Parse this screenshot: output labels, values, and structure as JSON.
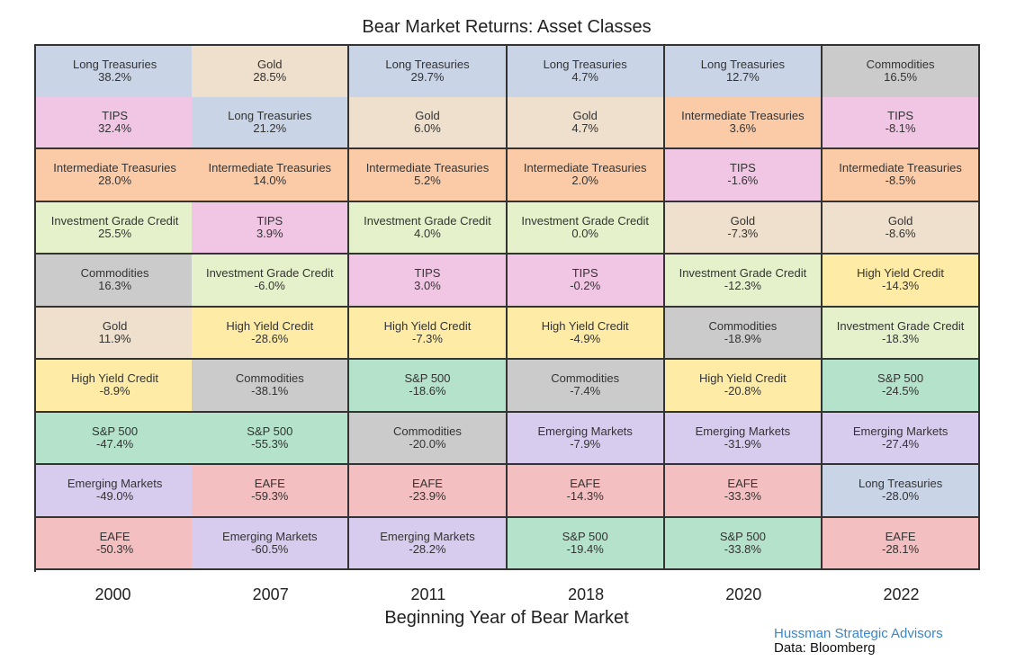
{
  "chart_data": {
    "type": "table",
    "title": "Bear Market Returns: Asset Classes",
    "xlabel": "Beginning Year of Bear Market",
    "categories": [
      "2000",
      "2007",
      "2011",
      "2018",
      "2020",
      "2022"
    ],
    "colors": {
      "Long Treasuries": "#c9d4e6",
      "Gold": "#eee0cc",
      "TIPS": "#f1c6e4",
      "Intermediate Treasuries": "#fbcaa6",
      "Investment Grade Credit": "#e5f1cb",
      "Commodities": "#cbcbcb",
      "High Yield Credit": "#fdeba6",
      "S&P 500": "#b4e2ca",
      "Emerging Markets": "#d7cced",
      "EAFE": "#f3bfc0"
    },
    "columns": [
      {
        "year": "2000",
        "cells": [
          {
            "asset": "Long Treasuries",
            "value": "38.2%"
          },
          {
            "asset": "TIPS",
            "value": "32.4%"
          },
          {
            "asset": "Intermediate Treasuries",
            "value": "28.0%"
          },
          {
            "asset": "Investment Grade Credit",
            "value": "25.5%"
          },
          {
            "asset": "Commodities",
            "value": "16.3%"
          },
          {
            "asset": "Gold",
            "value": "11.9%"
          },
          {
            "asset": "High Yield Credit",
            "value": "-8.9%"
          },
          {
            "asset": "S&P 500",
            "value": "-47.4%"
          },
          {
            "asset": "Emerging Markets",
            "value": "-49.0%"
          },
          {
            "asset": "EAFE",
            "value": "-50.3%"
          }
        ]
      },
      {
        "year": "2007",
        "cells": [
          {
            "asset": "Gold",
            "value": "28.5%"
          },
          {
            "asset": "Long Treasuries",
            "value": "21.2%"
          },
          {
            "asset": "Intermediate Treasuries",
            "value": "14.0%"
          },
          {
            "asset": "TIPS",
            "value": "3.9%"
          },
          {
            "asset": "Investment Grade Credit",
            "value": "-6.0%"
          },
          {
            "asset": "High Yield Credit",
            "value": "-28.6%"
          },
          {
            "asset": "Commodities",
            "value": "-38.1%"
          },
          {
            "asset": "S&P 500",
            "value": "-55.3%"
          },
          {
            "asset": "EAFE",
            "value": "-59.3%"
          },
          {
            "asset": "Emerging Markets",
            "value": "-60.5%"
          }
        ]
      },
      {
        "year": "2011",
        "cells": [
          {
            "asset": "Long Treasuries",
            "value": "29.7%"
          },
          {
            "asset": "Gold",
            "value": "6.0%"
          },
          {
            "asset": "Intermediate Treasuries",
            "value": "5.2%"
          },
          {
            "asset": "Investment Grade Credit",
            "value": "4.0%"
          },
          {
            "asset": "TIPS",
            "value": "3.0%"
          },
          {
            "asset": "High Yield Credit",
            "value": "-7.3%"
          },
          {
            "asset": "S&P 500",
            "value": "-18.6%"
          },
          {
            "asset": "Commodities",
            "value": "-20.0%"
          },
          {
            "asset": "EAFE",
            "value": "-23.9%"
          },
          {
            "asset": "Emerging Markets",
            "value": "-28.2%"
          }
        ]
      },
      {
        "year": "2018",
        "cells": [
          {
            "asset": "Long Treasuries",
            "value": "4.7%"
          },
          {
            "asset": "Gold",
            "value": "4.7%"
          },
          {
            "asset": "Intermediate Treasuries",
            "value": "2.0%"
          },
          {
            "asset": "Investment Grade Credit",
            "value": "0.0%"
          },
          {
            "asset": "TIPS",
            "value": "-0.2%"
          },
          {
            "asset": "High Yield Credit",
            "value": "-4.9%"
          },
          {
            "asset": "Commodities",
            "value": "-7.4%"
          },
          {
            "asset": "Emerging Markets",
            "value": "-7.9%"
          },
          {
            "asset": "EAFE",
            "value": "-14.3%"
          },
          {
            "asset": "S&P 500",
            "value": "-19.4%"
          }
        ]
      },
      {
        "year": "2020",
        "cells": [
          {
            "asset": "Long Treasuries",
            "value": "12.7%"
          },
          {
            "asset": "Intermediate Treasuries",
            "value": "3.6%"
          },
          {
            "asset": "TIPS",
            "value": "-1.6%"
          },
          {
            "asset": "Gold",
            "value": "-7.3%"
          },
          {
            "asset": "Investment Grade Credit",
            "value": "-12.3%"
          },
          {
            "asset": "Commodities",
            "value": "-18.9%"
          },
          {
            "asset": "High Yield Credit",
            "value": "-20.8%"
          },
          {
            "asset": "Emerging Markets",
            "value": "-31.9%"
          },
          {
            "asset": "EAFE",
            "value": "-33.3%"
          },
          {
            "asset": "S&P 500",
            "value": "-33.8%"
          }
        ]
      },
      {
        "year": "2022",
        "cells": [
          {
            "asset": "Commodities",
            "value": "16.5%"
          },
          {
            "asset": "TIPS",
            "value": "-8.1%"
          },
          {
            "asset": "Intermediate Treasuries",
            "value": "-8.5%"
          },
          {
            "asset": "Gold",
            "value": "-8.6%"
          },
          {
            "asset": "High Yield Credit",
            "value": "-14.3%"
          },
          {
            "asset": "Investment Grade Credit",
            "value": "-18.3%"
          },
          {
            "asset": "S&P 500",
            "value": "-24.5%"
          },
          {
            "asset": "Emerging Markets",
            "value": "-27.4%"
          },
          {
            "asset": "Long Treasuries",
            "value": "-28.0%"
          },
          {
            "asset": "EAFE",
            "value": "-28.1%"
          }
        ]
      }
    ]
  },
  "footer": {
    "brand": "Hussman Strategic Advisors",
    "source": "Data: Bloomberg"
  }
}
